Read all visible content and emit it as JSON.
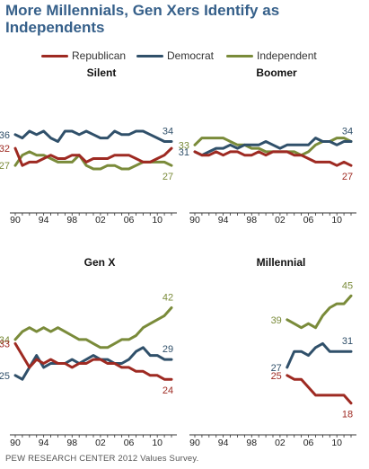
{
  "title": "More Millennials, Gen Xers Identify as Independents",
  "footer": "PEW RESEARCH CENTER 2012 Values Survey.",
  "colors": {
    "Republican": "#9e2a22",
    "Democrat": "#30506a",
    "Independent": "#7a8b3a",
    "axis": "#333333",
    "title": "#36608a"
  },
  "legend": [
    "Republican",
    "Democrat",
    "Independent"
  ],
  "chart_data": [
    {
      "type": "line",
      "title": "Silent",
      "x": [
        1990,
        1991,
        1992,
        1993,
        1994,
        1995,
        1996,
        1997,
        1998,
        1999,
        2000,
        2001,
        2002,
        2003,
        2004,
        2005,
        2006,
        2007,
        2008,
        2009,
        2010,
        2011,
        2012
      ],
      "xticks": [
        "90",
        "94",
        "98",
        "02",
        "06",
        "10"
      ],
      "series": [
        {
          "name": "Republican",
          "values": [
            32,
            27,
            28,
            28,
            29,
            30,
            29,
            29,
            30,
            30,
            28,
            29,
            29,
            29,
            30,
            30,
            30,
            29,
            28,
            28,
            29,
            30,
            32
          ],
          "start_label": "32",
          "end_label": ""
        },
        {
          "name": "Democrat",
          "values": [
            36,
            35,
            37,
            36,
            37,
            35,
            34,
            37,
            37,
            36,
            37,
            36,
            35,
            35,
            37,
            36,
            36,
            37,
            37,
            36,
            35,
            34,
            34
          ],
          "start_label": "36",
          "end_label": "34"
        },
        {
          "name": "Independent",
          "values": [
            27,
            30,
            31,
            30,
            30,
            29,
            28,
            28,
            28,
            30,
            27,
            26,
            26,
            27,
            27,
            26,
            26,
            27,
            28,
            28,
            28,
            28,
            27
          ],
          "start_label": "27",
          "end_label": "27"
        }
      ]
    },
    {
      "type": "line",
      "title": "Boomer",
      "x": [
        1990,
        1991,
        1992,
        1993,
        1994,
        1995,
        1996,
        1997,
        1998,
        1999,
        2000,
        2001,
        2002,
        2003,
        2004,
        2005,
        2006,
        2007,
        2008,
        2009,
        2010,
        2011,
        2012
      ],
      "xticks": [
        "90",
        "94",
        "98",
        "02",
        "06",
        "10"
      ],
      "series": [
        {
          "name": "Republican",
          "values": [
            31,
            30,
            30,
            31,
            30,
            31,
            31,
            30,
            30,
            31,
            30,
            31,
            31,
            31,
            30,
            30,
            29,
            28,
            28,
            28,
            27,
            28,
            27
          ],
          "start_label": "",
          "end_label": "27"
        },
        {
          "name": "Democrat",
          "values": [
            31,
            30,
            31,
            32,
            32,
            33,
            32,
            33,
            33,
            33,
            34,
            33,
            32,
            33,
            33,
            33,
            33,
            35,
            34,
            34,
            33,
            34,
            34
          ],
          "start_label": "31",
          "end_label": "34"
        },
        {
          "name": "Independent",
          "values": [
            33,
            35,
            35,
            35,
            35,
            34,
            33,
            33,
            32,
            32,
            31,
            31,
            31,
            31,
            31,
            30,
            31,
            33,
            34,
            34,
            35,
            35,
            34
          ],
          "start_label": "33",
          "end_label": ""
        }
      ]
    },
    {
      "type": "line",
      "title": "Gen X",
      "x": [
        1990,
        1991,
        1992,
        1993,
        1994,
        1995,
        1996,
        1997,
        1998,
        1999,
        2000,
        2001,
        2002,
        2003,
        2004,
        2005,
        2006,
        2007,
        2008,
        2009,
        2010,
        2011,
        2012
      ],
      "xticks": [
        "90",
        "94",
        "98",
        "02",
        "06",
        "10"
      ],
      "series": [
        {
          "name": "Republican",
          "values": [
            33,
            30,
            27,
            29,
            28,
            29,
            28,
            28,
            27,
            28,
            28,
            29,
            29,
            28,
            28,
            27,
            27,
            26,
            26,
            25,
            25,
            24,
            24
          ],
          "start_label": "33",
          "end_label": "24"
        },
        {
          "name": "Democrat",
          "values": [
            25,
            24,
            27,
            30,
            27,
            28,
            28,
            28,
            29,
            28,
            29,
            30,
            29,
            29,
            28,
            28,
            29,
            31,
            32,
            30,
            30,
            29,
            29
          ],
          "start_label": "25",
          "end_label": "29"
        },
        {
          "name": "Independent",
          "values": [
            34,
            36,
            37,
            36,
            37,
            36,
            37,
            36,
            35,
            34,
            34,
            33,
            32,
            32,
            33,
            34,
            34,
            35,
            37,
            38,
            39,
            40,
            42
          ],
          "start_label": "34",
          "end_label": "42"
        }
      ]
    },
    {
      "type": "line",
      "title": "Millennial",
      "x": [
        2003,
        2004,
        2005,
        2006,
        2007,
        2008,
        2009,
        2010,
        2011,
        2012
      ],
      "xticks": [
        "90",
        "94",
        "98",
        "02",
        "06",
        "10"
      ],
      "xlim": [
        1990,
        2012
      ],
      "series": [
        {
          "name": "Republican",
          "values": [
            25,
            24,
            24,
            22,
            20,
            20,
            20,
            20,
            20,
            18
          ],
          "start_label": "25",
          "end_label": "18"
        },
        {
          "name": "Democrat",
          "values": [
            27,
            31,
            31,
            30,
            32,
            33,
            31,
            31,
            31,
            31
          ],
          "start_label": "27",
          "end_label": "31"
        },
        {
          "name": "Independent",
          "values": [
            39,
            38,
            37,
            38,
            37,
            40,
            42,
            43,
            43,
            45
          ],
          "start_label": "39",
          "end_label": "45"
        }
      ]
    }
  ]
}
